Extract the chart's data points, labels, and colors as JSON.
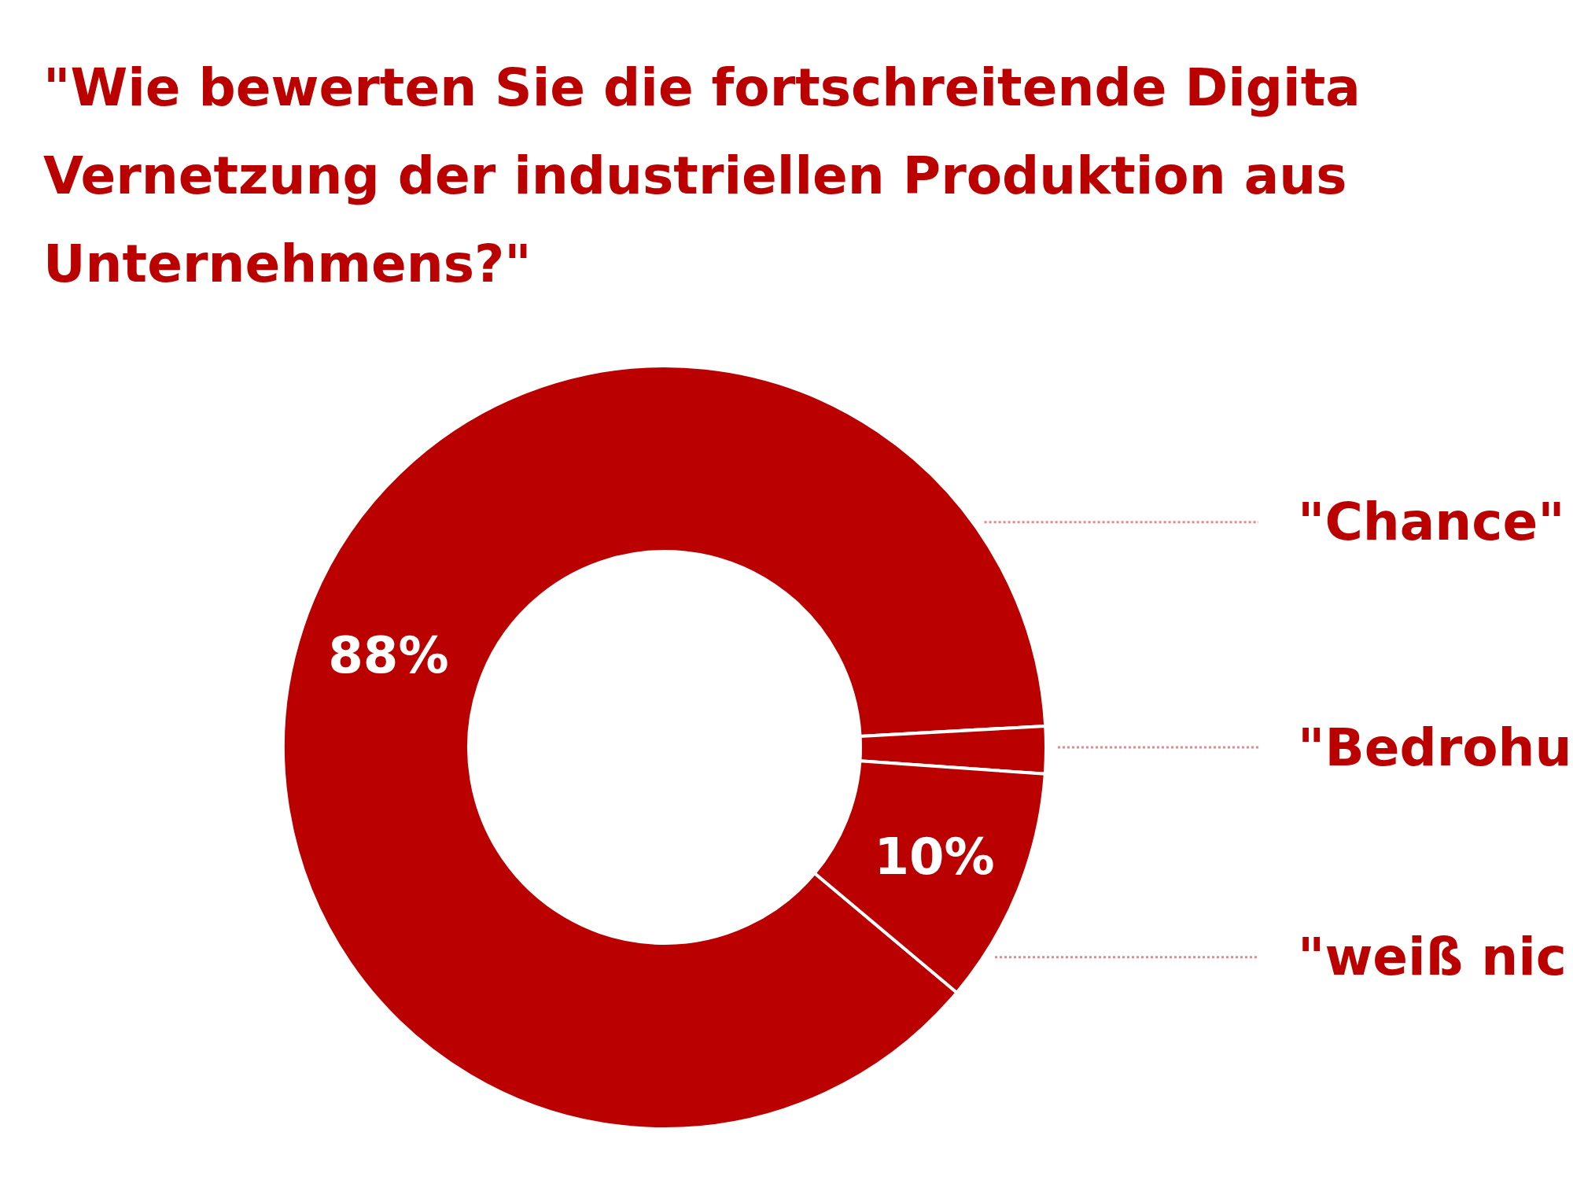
{
  "chart_data": {
    "type": "donut",
    "title": "\"Wie bewerten Sie die fortschreitende Digita\nVernetzung der industriellen Produktion aus\nUnternehmens?\"",
    "categories": [
      "\"Chance\"",
      "\"Bedrohu",
      "\"weiß nic"
    ],
    "values": [
      88,
      2,
      10
    ],
    "colors": [
      "#bb0000",
      "#bb0000",
      "#bb0000"
    ],
    "value_labels": [
      "88%",
      null,
      "10%"
    ]
  }
}
